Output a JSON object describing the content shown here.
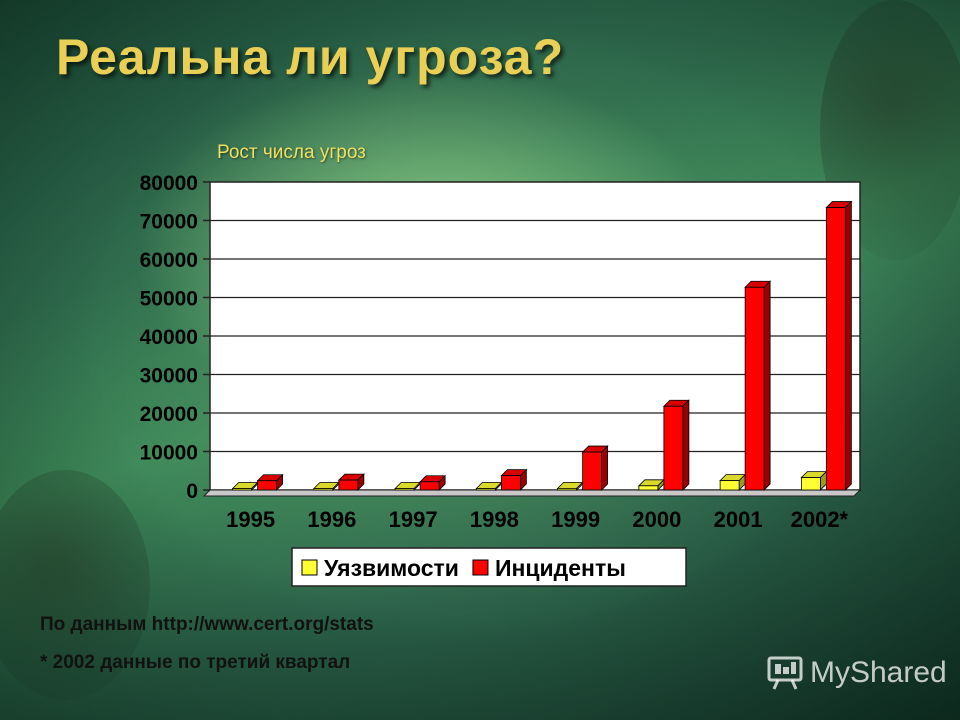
{
  "title": "Реальна ли угроза?",
  "source_note": "По данным http://www.cert.org/stats",
  "footnote": "* 2002 данные по третий квартал",
  "watermark": "MyShared",
  "chart_data": {
    "type": "bar",
    "title": "Рост числа угроз",
    "xlabel": "",
    "ylabel": "",
    "categories": [
      "1995",
      "1996",
      "1997",
      "1998",
      "1999",
      "2000",
      "2001",
      "2002*"
    ],
    "series": [
      {
        "name": "Уязвимости",
        "color": "#ffff33",
        "values": [
          171,
          345,
          311,
          262,
          417,
          1090,
          2437,
          3222
        ]
      },
      {
        "name": "Инциденты",
        "color": "#ff0000",
        "values": [
          2412,
          2573,
          2134,
          3734,
          9859,
          21756,
          52658,
          73359
        ]
      }
    ],
    "ylim": [
      0,
      80000
    ],
    "yticks": [
      "0",
      "10000",
      "20000",
      "30000",
      "40000",
      "50000",
      "60000",
      "70000",
      "80000"
    ],
    "grid": true,
    "legend": "bottom"
  }
}
